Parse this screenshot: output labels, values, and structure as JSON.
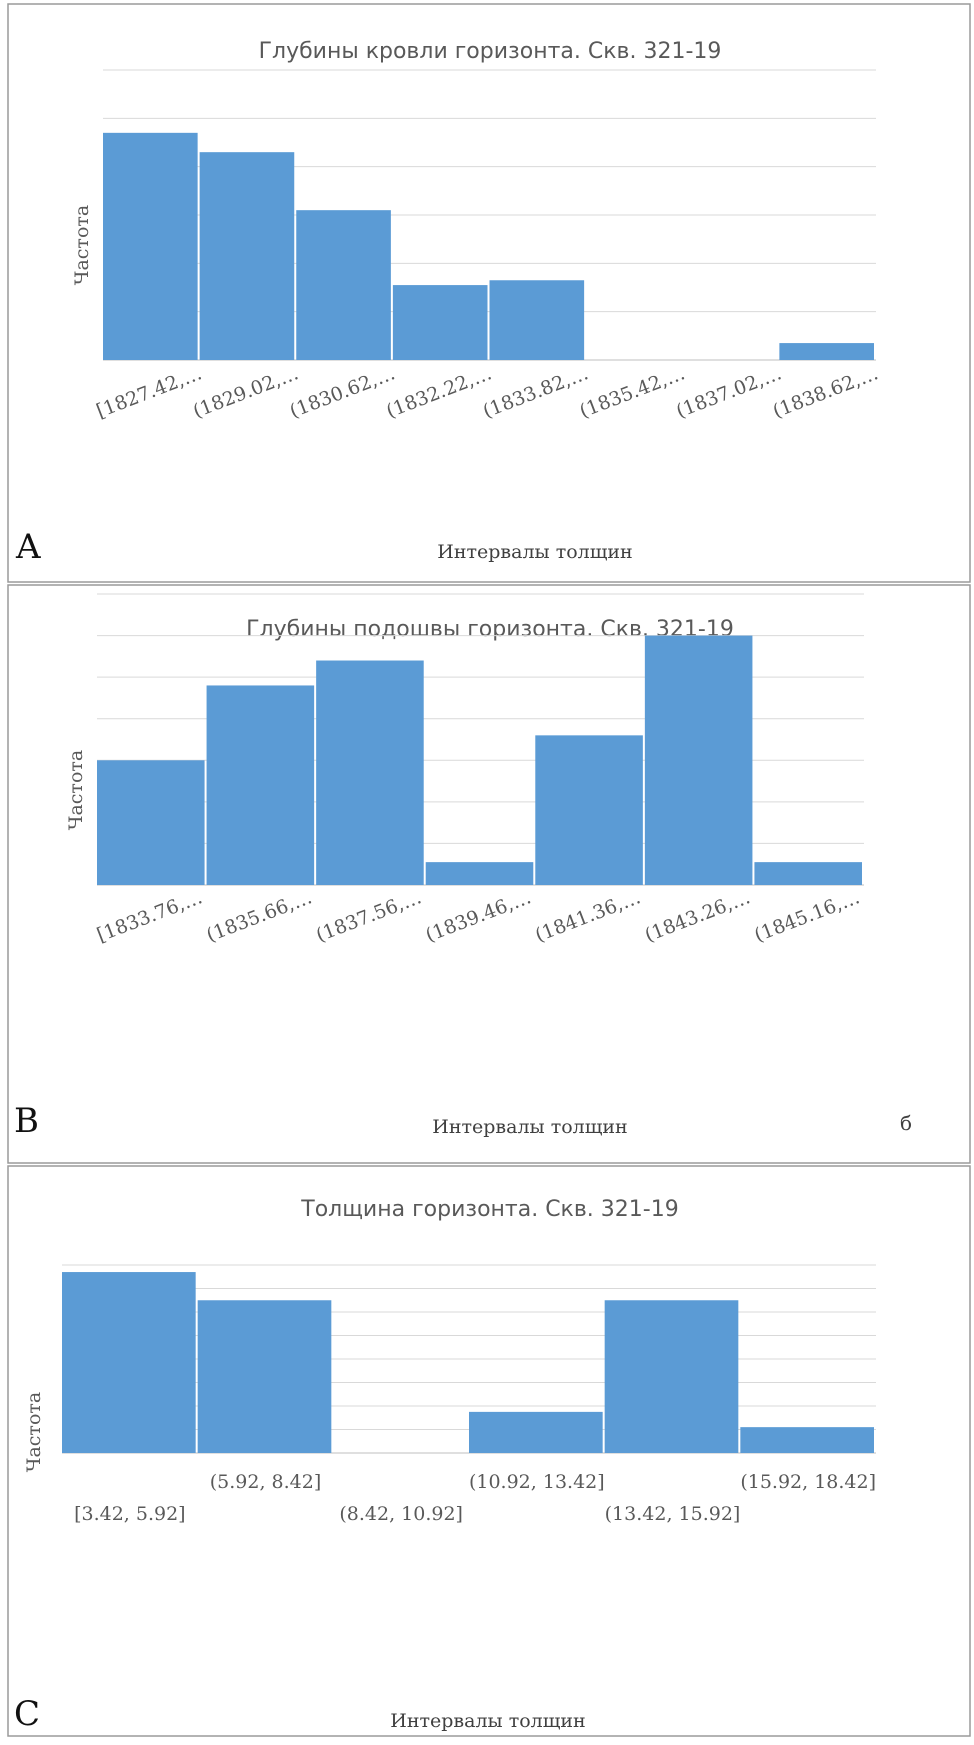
{
  "colors": {
    "bar": "#5b9bd5",
    "grid": "#d9d9d9",
    "axis": "#bfbfbf",
    "frame": "#9a9a9a"
  },
  "chart_data": [
    {
      "panel_label": "A",
      "type": "bar",
      "title": "Глубины кровли горизонта. Скв. 321-19",
      "xlabel": "Интервалы толщин",
      "ylabel": "Частота",
      "categories": [
        "[1827.42,…",
        "(1829.02,…",
        "(1830.62,…",
        "(1832.22,…",
        "(1833.82,…",
        "(1835.42,…",
        "(1837.02,…",
        "(1838.62,…"
      ],
      "values": [
        4.7,
        4.3,
        3.1,
        1.55,
        1.65,
        0,
        0,
        0.35
      ],
      "ylim": [
        0,
        6
      ],
      "grid": true,
      "legend": "none"
    },
    {
      "panel_label": "B",
      "note": "б",
      "type": "bar",
      "title": "Глубины подошвы горизонта. Скв. 321-19",
      "xlabel": "Интервалы толщин",
      "ylabel": "Частота",
      "categories": [
        "[1833.76,…",
        "(1835.66,…",
        "(1837.56,…",
        "(1839.46,…",
        "(1841.36,…",
        "(1843.26,…",
        "(1845.16,…"
      ],
      "values": [
        3,
        4.8,
        5.4,
        0.55,
        3.6,
        6,
        0.55
      ],
      "ylim": [
        0,
        7
      ],
      "grid": true,
      "legend": "none"
    },
    {
      "panel_label": "C",
      "type": "bar",
      "title": "Толщина горизонта. Скв. 321-19",
      "xlabel": "Интервалы толщин",
      "ylabel": "Частота",
      "categories": [
        "[3.42, 5.92]",
        "(5.92, 8.42]",
        "(8.42, 10.92]",
        "(10.92, 13.42]",
        "(13.42, 15.92]",
        "(15.92, 18.42]"
      ],
      "values": [
        7.7,
        6.5,
        0,
        1.75,
        6.5,
        1.1
      ],
      "ylim": [
        0,
        8
      ],
      "grid": true,
      "legend": "none"
    }
  ]
}
